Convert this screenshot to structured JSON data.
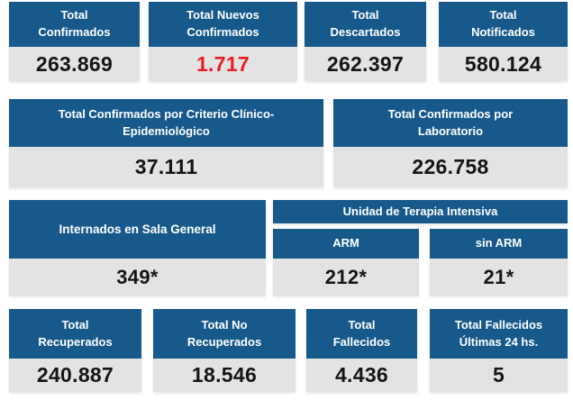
{
  "theme": {
    "header_bg": "#17598a",
    "value_bg": "#e3e3e3",
    "value_color": "#151515",
    "alert_color": "#ed1c24",
    "header_text": "#ffffff"
  },
  "row1": {
    "cards": [
      {
        "label": "Total Confirmados",
        "value": "263.869",
        "highlight": false
      },
      {
        "label": "Total Nuevos Confirmados",
        "value": "1.717",
        "highlight": true
      },
      {
        "label": "Total Descartados",
        "value": "262.397",
        "highlight": false
      },
      {
        "label": "Total Notificados",
        "value": "580.124",
        "highlight": false
      }
    ]
  },
  "row2": {
    "cards": [
      {
        "label": "Total Confirmados por Criterio Clínico-Epidemiológico",
        "value": "37.111"
      },
      {
        "label": "Total Confirmados por Laboratorio",
        "value": "226.758"
      }
    ]
  },
  "row3": {
    "general_ward": {
      "label": "Internados en Sala General",
      "value": "349*"
    },
    "icu": {
      "label": "Unidad de Terapia Intensiva",
      "columns": [
        {
          "label": "ARM",
          "value": "212*"
        },
        {
          "label": "sin ARM",
          "value": "21*"
        }
      ]
    }
  },
  "row4": {
    "cards": [
      {
        "label": "Total Recuperados",
        "value": "240.887"
      },
      {
        "label": "Total No Recuperados",
        "value": "18.546"
      },
      {
        "label": "Total Fallecidos",
        "value": "4.436"
      },
      {
        "label": "Total Fallecidos Últimas 24 hs.",
        "value": "5"
      }
    ]
  }
}
